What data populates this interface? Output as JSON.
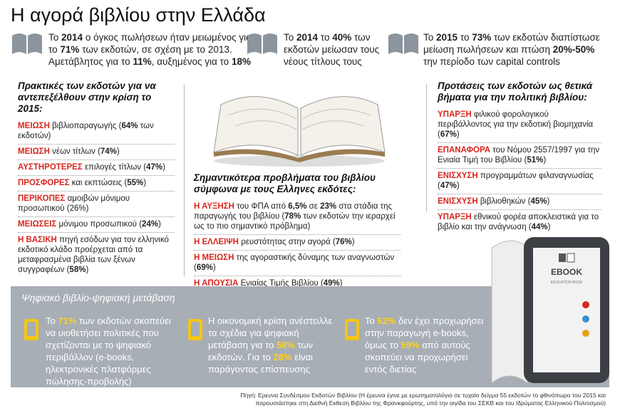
{
  "header": {
    "title": "Η αγορά βιβλίου στην Ελλάδα"
  },
  "facts": [
    [
      "Το ",
      "2014",
      " ο όγκος πωλήσεων ήταν μειωμένος για το ",
      "71%",
      " των εκδοτών, σε σχέση με το 2013. Αμετάβλητος για το ",
      "11%",
      ", αυξημένος για το ",
      "18%"
    ],
    [
      "Το ",
      "2014",
      " το ",
      "40%",
      " των εκδοτών μείωσαν τους νέους τίτλους τους"
    ],
    [
      "Το ",
      "2015",
      " το ",
      "73%",
      " των εκδοτών διαπίστωσε μείωση πωλήσεων και πτώση ",
      "20%-50%",
      " την περίοδο των capital controls"
    ]
  ],
  "practices": {
    "heading": "Πρακτικές των εκδοτών για να αντεπεξέλθουν στην κρίση το 2015:",
    "items": [
      {
        "keyword": "ΜΕΙΩΣΗ",
        "parts": [
          " βιβλιοπαραγωγής (",
          "64%",
          " των εκδοτών)"
        ]
      },
      {
        "keyword": "ΜΕΙΩΣΗ",
        "parts": [
          " νέων τίτλων (",
          "74%",
          ")"
        ]
      },
      {
        "keyword": "ΑΥΣΤΗΡΟΤΕΡΕΣ",
        "parts": [
          " επιλογές τίτλων (",
          "47%",
          ")"
        ]
      },
      {
        "keyword": "ΠΡΟΣΦΟΡΕΣ",
        "parts": [
          " και εκπτώσεις (",
          "55%",
          ")"
        ]
      },
      {
        "keyword": "ΠΕΡΙΚΟΠΕΣ",
        "parts": [
          " αμοιβών μόνιμου προσωπικού (26%)"
        ]
      },
      {
        "keyword": "ΜΕΙΩΣΕΙΣ",
        "parts": [
          " μόνιμου προσωπικού (",
          "24%",
          ")"
        ]
      },
      {
        "keyword": "Η ΒΑΣΙΚΗ",
        "parts": [
          " πηγή εσόδων για τον ελληνικό εκδοτικό κλάδο προέρχεται από τα μεταφρασμένα βιβλία των ξένων συγγραφέων (",
          "58%",
          ")"
        ]
      }
    ]
  },
  "problems": {
    "heading": "Σημαντικότερα προβλήματα του βιβλίου σύμφωνα με τους Ελληνες εκδότες:",
    "items": [
      {
        "keyword": "Η ΑΥΞΗΣΗ",
        "parts": [
          " του ΦΠΑ από ",
          "6,5%",
          " σε ",
          "23%",
          " στα στάδια της παραγωγής του βιβλίου (",
          "78%",
          " των εκδοτών την ιεραρχεί ως το πιο σημαντικό πρόβλημα)"
        ]
      },
      {
        "keyword": "Η ΕΛΛΕΙΨΗ",
        "parts": [
          " ρευστότητας στην αγορά (",
          "76%",
          ")"
        ]
      },
      {
        "keyword": "Η ΜΕΙΩΣΗ",
        "parts": [
          " της αγοραστικής δύναμης των αναγνωστών (",
          "69%",
          ")"
        ]
      },
      {
        "keyword": "Η ΑΠΟΥΣΙΑ",
        "parts": [
          " Ενιαίας Τιμής Βιβλίου (",
          "49%",
          ")"
        ]
      }
    ]
  },
  "proposals": {
    "heading": "Προτάσεις των εκδοτών ως θετικά βήματα για την πολιτική βιβλίου:",
    "items": [
      {
        "keyword": "ΥΠΑΡΞΗ",
        "parts": [
          " φιλικού φορολογικού περιβάλλοντος για την εκδοτική βιομηχανία (",
          "67%",
          ")"
        ]
      },
      {
        "keyword": "ΕΠΑΝΑΦΟΡΑ",
        "parts": [
          " του Νόμου 2557/1997 για την Ενιαία Τιμή του Βιβλίου (",
          "51%",
          ")"
        ]
      },
      {
        "keyword": "ΕΝΙΣΧΥΣΗ",
        "parts": [
          " προγραμμάτων φιλαναγνωσίας (",
          "47%",
          ")"
        ]
      },
      {
        "keyword": "ΕΝΙΣΧΥΣΗ",
        "parts": [
          " βιβλιοθηκών (",
          "45%",
          ")"
        ]
      },
      {
        "keyword": "ΥΠΑΡΞΗ",
        "parts": [
          " εθνικού φορέα αποκλειστικά για το βιβλίο και την ανάγνωση (",
          "44%",
          ")"
        ]
      }
    ]
  },
  "digital": {
    "title": "Ψηφιακό βιβλίο-ψηφιακή μετάβαση",
    "items": [
      [
        "Το ",
        "71%",
        " των εκδοτών σκοπεύει να υιοθετήσει πολιτικές που σχετίζονται με το ψηφιακό περιβάλλον (e-books, ηλεκτρονικές πλατφόρμες πώλησης-προβολής)"
      ],
      [
        "Η οικονομική κρίση ανέστειλλε τα σχέδια για ψηφιακή μετάβαση για το ",
        "58%",
        " των εκδοτών. Για το ",
        "28%",
        " είναι παράγοντας επίσπευσης"
      ],
      [
        "Το ",
        "62%",
        " δεν έχει προχωρήσει στην παραγωγή e-books, όμως το ",
        "59%",
        " από αυτούς σκοπεύει να προχωρήσει εντός διετίας"
      ]
    ]
  },
  "ebook": {
    "label": "EBOOK",
    "sublabel": "EDUCATION BOOK"
  },
  "source": "Πηγή: Ερευνα Συνδέσμου Εκδοτών Βιβλίου (Η έρευνα έγινε με ερωτηματολόγιο σε τυχαίο δείγμα 55 εκδοτών το φθινόπωρο του 2015 και παρουσιάστηκε στη Διεθνή Εκθεση Βιβλίου της Φρανκφούρτης, υπό την αιγίδα του ΣΕΚΒ και του Ιδρύματος Ελληνικού Πολιτισμού)"
}
